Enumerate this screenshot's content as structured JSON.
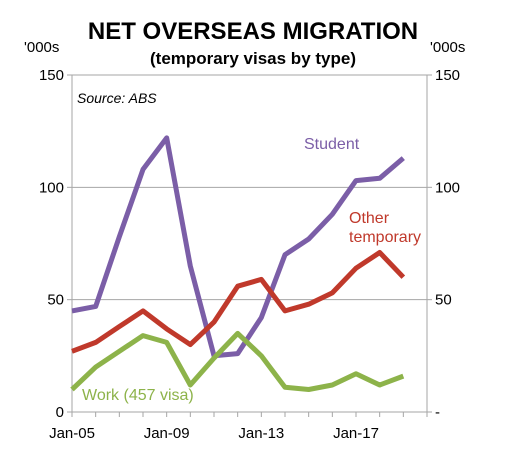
{
  "chart_data": {
    "type": "line",
    "title": "NET OVERSEAS MIGRATION",
    "subtitle": "(temporary visas by type)",
    "y_unit_left": "'000s",
    "y_unit_right": "'000s",
    "source": "Source: ABS",
    "ylim": [
      0,
      150
    ],
    "xlim": [
      2005,
      2020
    ],
    "y_ticks_left": [
      "0",
      "50",
      "100",
      "150"
    ],
    "y_ticks_right": [
      "-",
      "50",
      "100",
      "150"
    ],
    "y_tick_values": [
      0,
      50,
      100,
      150
    ],
    "x_ticks": [
      {
        "label": "Jan-05",
        "value": 2005
      },
      {
        "label": "Jan-09",
        "value": 2009
      },
      {
        "label": "Jan-13",
        "value": 2013
      },
      {
        "label": "Jan-17",
        "value": 2017
      }
    ],
    "grid": "horizontal",
    "x": [
      2005,
      2006,
      2007,
      2008,
      2009,
      2010,
      2011,
      2012,
      2013,
      2014,
      2015,
      2016,
      2017,
      2018,
      2019
    ],
    "series": [
      {
        "name": "Student",
        "label_lines": [
          "Student"
        ],
        "color": "#7b5ea7",
        "values": [
          45,
          47,
          78,
          108,
          122,
          65,
          25,
          26,
          42,
          70,
          77,
          88,
          103,
          104,
          113
        ]
      },
      {
        "name": "Other temporary",
        "label_lines": [
          "Other",
          "temporary"
        ],
        "color": "#c0392b",
        "values": [
          27,
          31,
          38,
          45,
          37,
          30,
          40,
          56,
          59,
          45,
          48,
          53,
          64,
          71,
          60
        ]
      },
      {
        "name": "Work (457 visa)",
        "label_lines": [
          "Work (457 visa)"
        ],
        "color": "#8db34a",
        "values": [
          10,
          20,
          27,
          34,
          31,
          12,
          24,
          35,
          25,
          11,
          10,
          12,
          17,
          12,
          16
        ]
      }
    ]
  }
}
